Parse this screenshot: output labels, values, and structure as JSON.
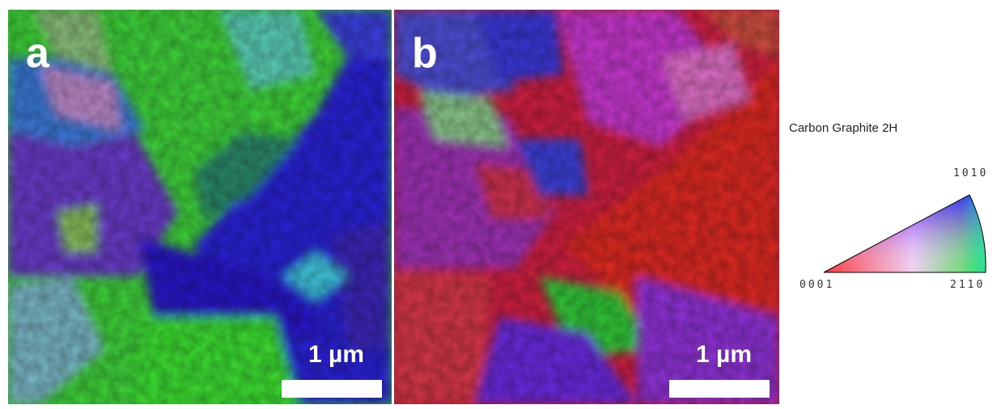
{
  "panels": [
    {
      "letter": "a",
      "scale_label": "1 µm"
    },
    {
      "letter": "b",
      "scale_label": "1 µm"
    }
  ],
  "legend": {
    "title": "Carbon Graphite 2H",
    "index_top": "1010",
    "index_left": "0001",
    "index_right": "2110",
    "colors": {
      "red": "#ff2020",
      "green": "#20e020",
      "blue": "#2020ff"
    }
  }
}
